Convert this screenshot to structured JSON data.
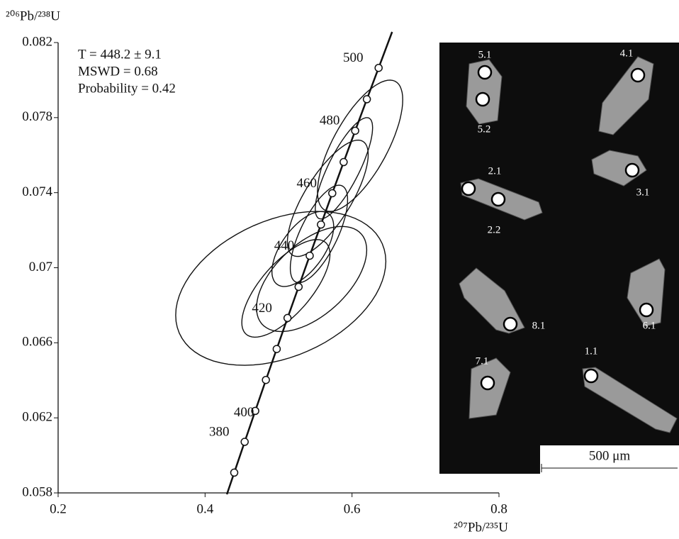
{
  "chart_data": {
    "type": "concordia",
    "ylabel": "²⁰⁶Pb/²³⁸U",
    "xlabel": "²⁰⁷Pb/²³⁵U",
    "xlim": [
      0.2,
      0.8
    ],
    "xticks": [
      0.2,
      0.4,
      0.6,
      0.8
    ],
    "ylim": [
      0.058,
      0.082
    ],
    "yticks": [
      0.058,
      0.062,
      0.066,
      0.07,
      0.074,
      0.078,
      0.082
    ],
    "annotations": [
      "T = 448.2 ± 9.1",
      "MSWD = 0.68",
      "Probability = 0.42"
    ],
    "concordia": {
      "x": [
        0.4397,
        0.4539,
        0.4683,
        0.4828,
        0.4975,
        0.5122,
        0.5273,
        0.5424,
        0.5577,
        0.5731,
        0.5886,
        0.6043,
        0.6202,
        0.6362
      ],
      "y": [
        0.05908,
        0.06072,
        0.06237,
        0.06402,
        0.06567,
        0.06732,
        0.06898,
        0.07064,
        0.0723,
        0.07397,
        0.07563,
        0.0773,
        0.07898,
        0.08065
      ],
      "ages": [
        null,
        380,
        null,
        400,
        null,
        420,
        null,
        440,
        null,
        460,
        null,
        480,
        null,
        500
      ]
    },
    "spots": {
      "x": [
        0.503,
        0.611,
        0.589,
        0.567,
        0.555,
        0.533,
        0.51,
        0.545
      ],
      "sx": [
        0.143,
        0.058,
        0.039,
        0.055,
        0.039,
        0.042,
        0.06,
        0.075
      ],
      "y": [
        0.0689,
        0.0765,
        0.0753,
        0.0737,
        0.0718,
        0.071,
        0.0689,
        0.0694
      ],
      "sy": [
        0.0041,
        0.0035,
        0.0027,
        0.0031,
        0.0026,
        0.002,
        0.0026,
        0.0028
      ],
      "rho": [
        0.35,
        0.7,
        0.8,
        0.75,
        0.7,
        0.6,
        0.7,
        0.55
      ]
    },
    "inset": {
      "spot_labels": [
        "5.1",
        "5.2",
        "4.1",
        "2.1",
        "2.2",
        "3.1",
        "8.1",
        "6.1",
        "7.1",
        "1.1"
      ],
      "scale_bar": "500 μm"
    }
  }
}
